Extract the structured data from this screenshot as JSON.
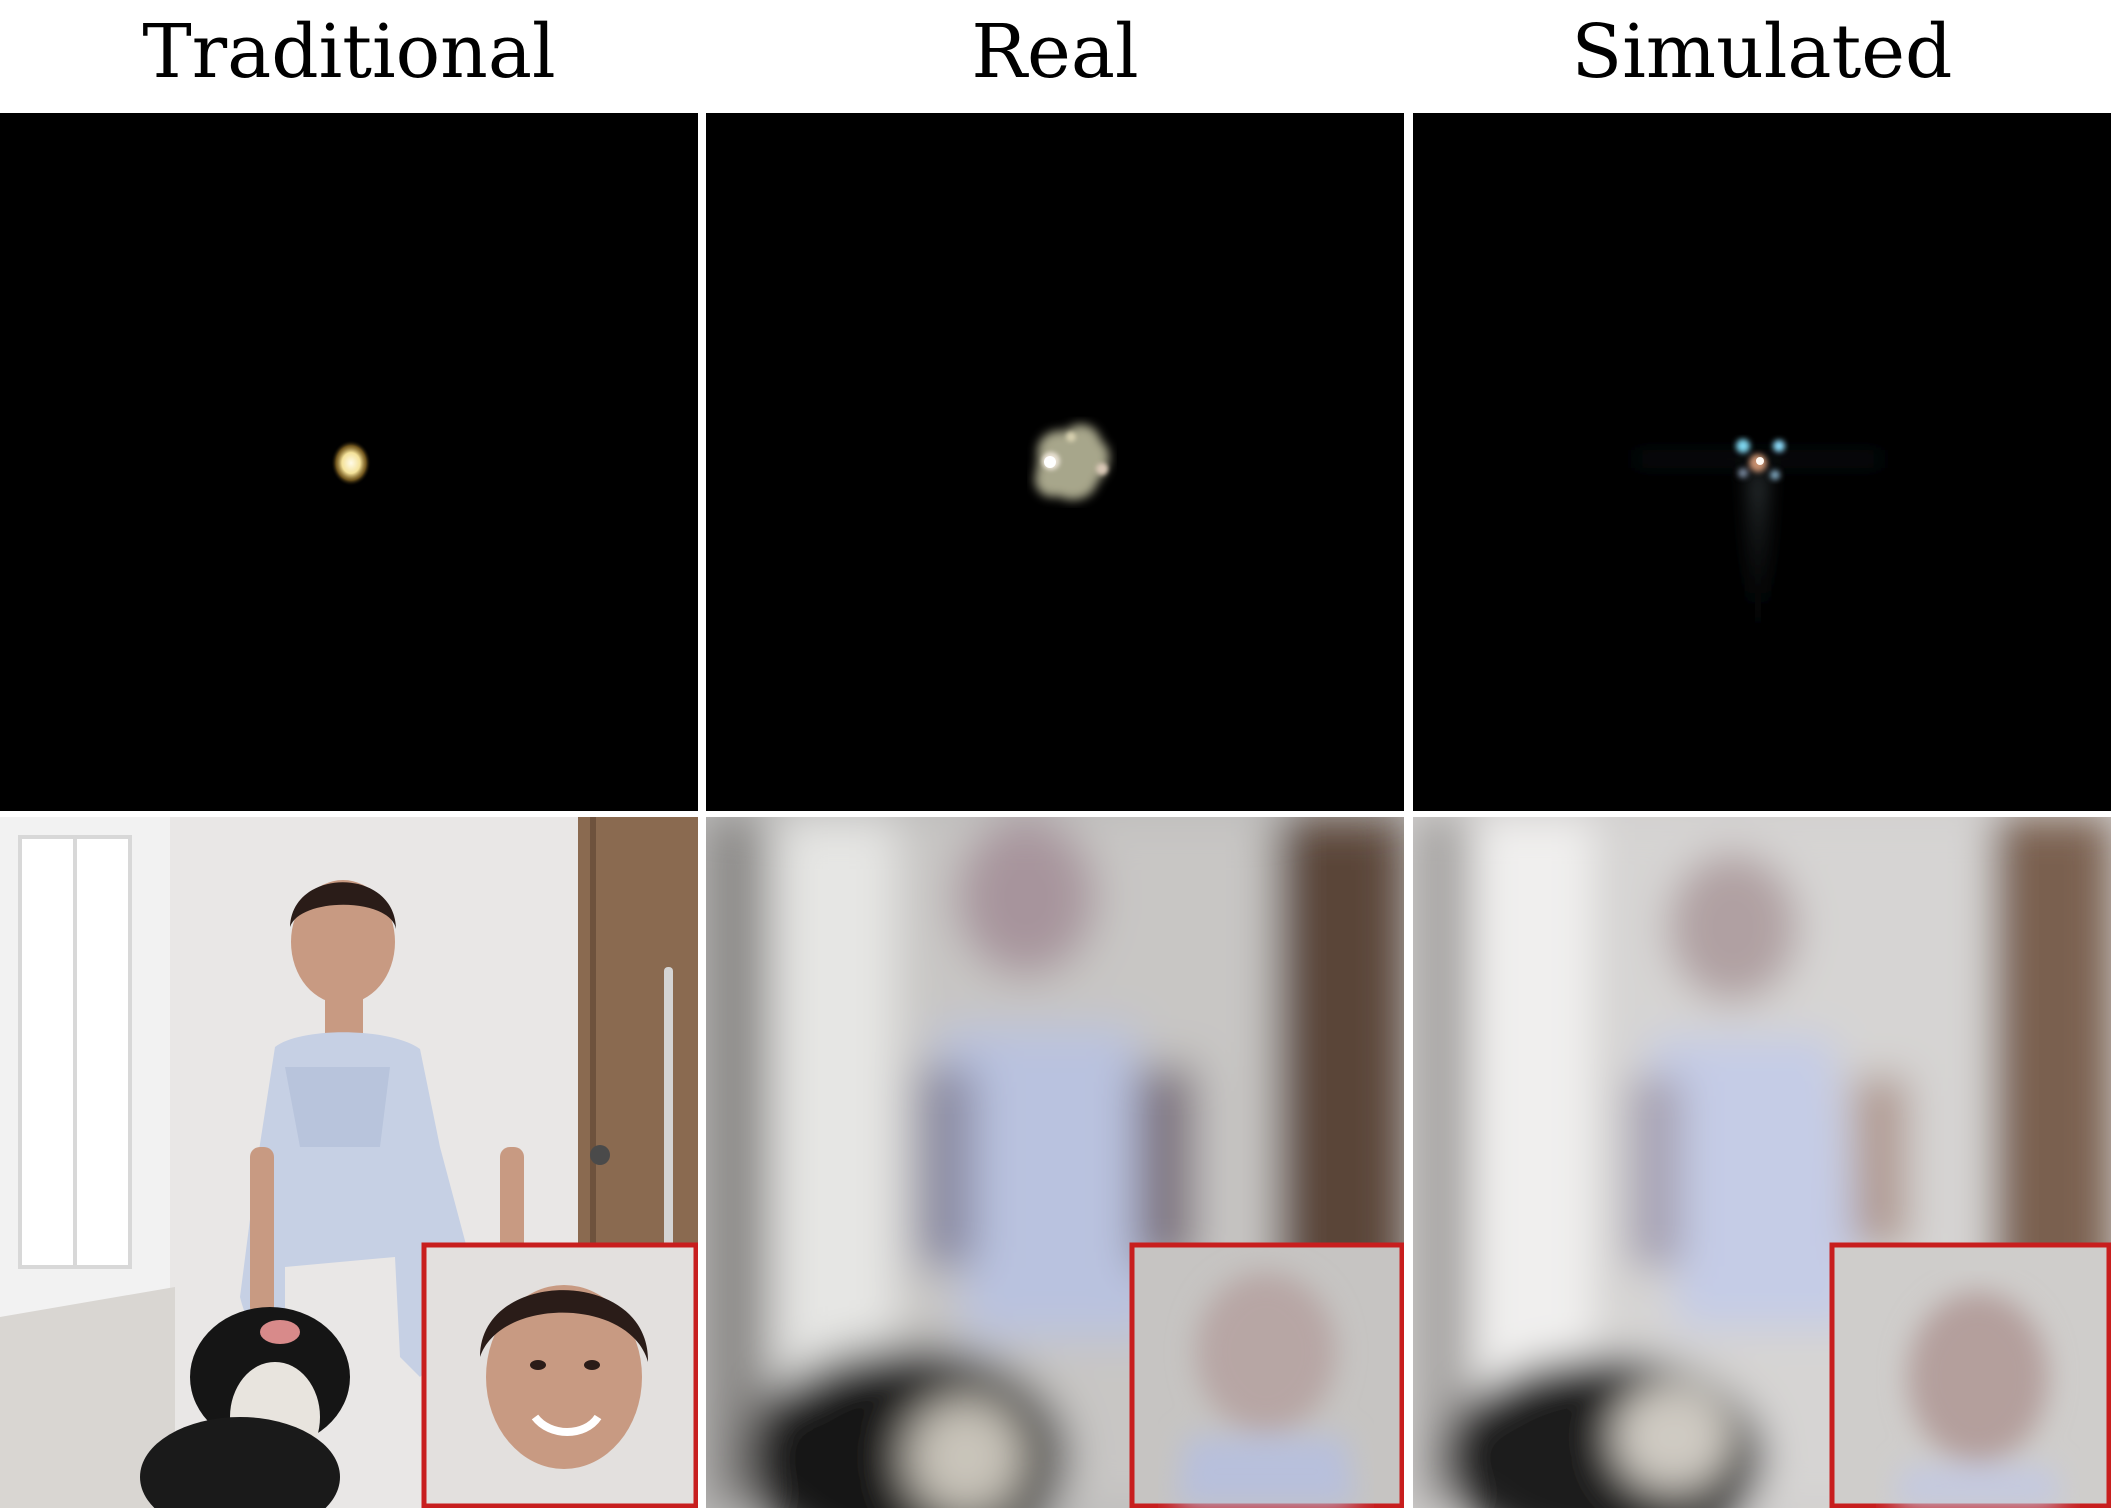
{
  "figure": {
    "columns": [
      {
        "title": "Traditional"
      },
      {
        "title": "Real"
      },
      {
        "title": "Simulated"
      }
    ],
    "rows": [
      {
        "kind": "psf"
      },
      {
        "kind": "captured-photo",
        "inset": "face-zoom"
      }
    ],
    "colors": {
      "inset_border": "#c81e1e",
      "psf_background": "#000000"
    }
  }
}
